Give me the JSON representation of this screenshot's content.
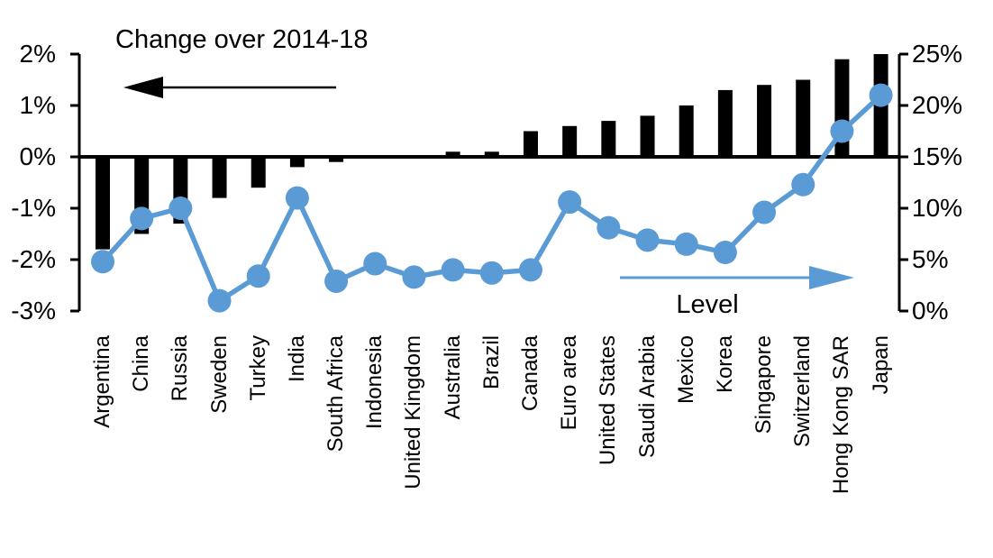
{
  "chart_data": {
    "type": "bar",
    "subtype": "dual-axis bar and line",
    "categories": [
      "Argentina",
      "China",
      "Russia",
      "Sweden",
      "Turkey",
      "India",
      "South Africa",
      "Indonesia",
      "United Kingdom",
      "Australia",
      "Brazil",
      "Canada",
      "Euro area",
      "United States",
      "Saudi Arabia",
      "Mexico",
      "Korea",
      "Singapore",
      "Switzerland",
      "Hong Kong SAR",
      "Japan"
    ],
    "series": [
      {
        "name": "Change over 2014-18",
        "type": "bar",
        "axis": "left",
        "values": [
          -1.8,
          -1.5,
          -1.3,
          -0.8,
          -0.6,
          -0.2,
          -0.1,
          0.0,
          0.0,
          0.1,
          0.1,
          0.5,
          0.6,
          0.7,
          0.8,
          1.0,
          1.3,
          1.4,
          1.5,
          1.9,
          2.0
        ]
      },
      {
        "name": "Level",
        "type": "line",
        "axis": "right",
        "values": [
          4.8,
          9.0,
          10.0,
          1.0,
          3.4,
          11.0,
          2.9,
          4.6,
          3.3,
          4.0,
          3.7,
          4.0,
          10.6,
          8.1,
          6.9,
          6.5,
          5.7,
          9.6,
          12.3,
          17.5,
          21.0
        ]
      }
    ],
    "left_axis": {
      "min": -3,
      "max": 2,
      "tick_labels": [
        "2%",
        "1%",
        "0%",
        "-1%",
        "-2%",
        "-3%"
      ]
    },
    "right_axis": {
      "min": 0,
      "max": 25,
      "tick_labels": [
        "25%",
        "20%",
        "15%",
        "10%",
        "5%",
        "0%"
      ]
    },
    "annotations": {
      "bar_series_label": "Change over 2014-18",
      "line_series_label": "Level",
      "bar_arrow_direction": "left",
      "line_arrow_direction": "right"
    },
    "legend_position": "in-plot annotations with arrows",
    "grid": false,
    "colors": {
      "bar": "#000000",
      "line": "#5B9BD5",
      "text": "#000000"
    }
  }
}
